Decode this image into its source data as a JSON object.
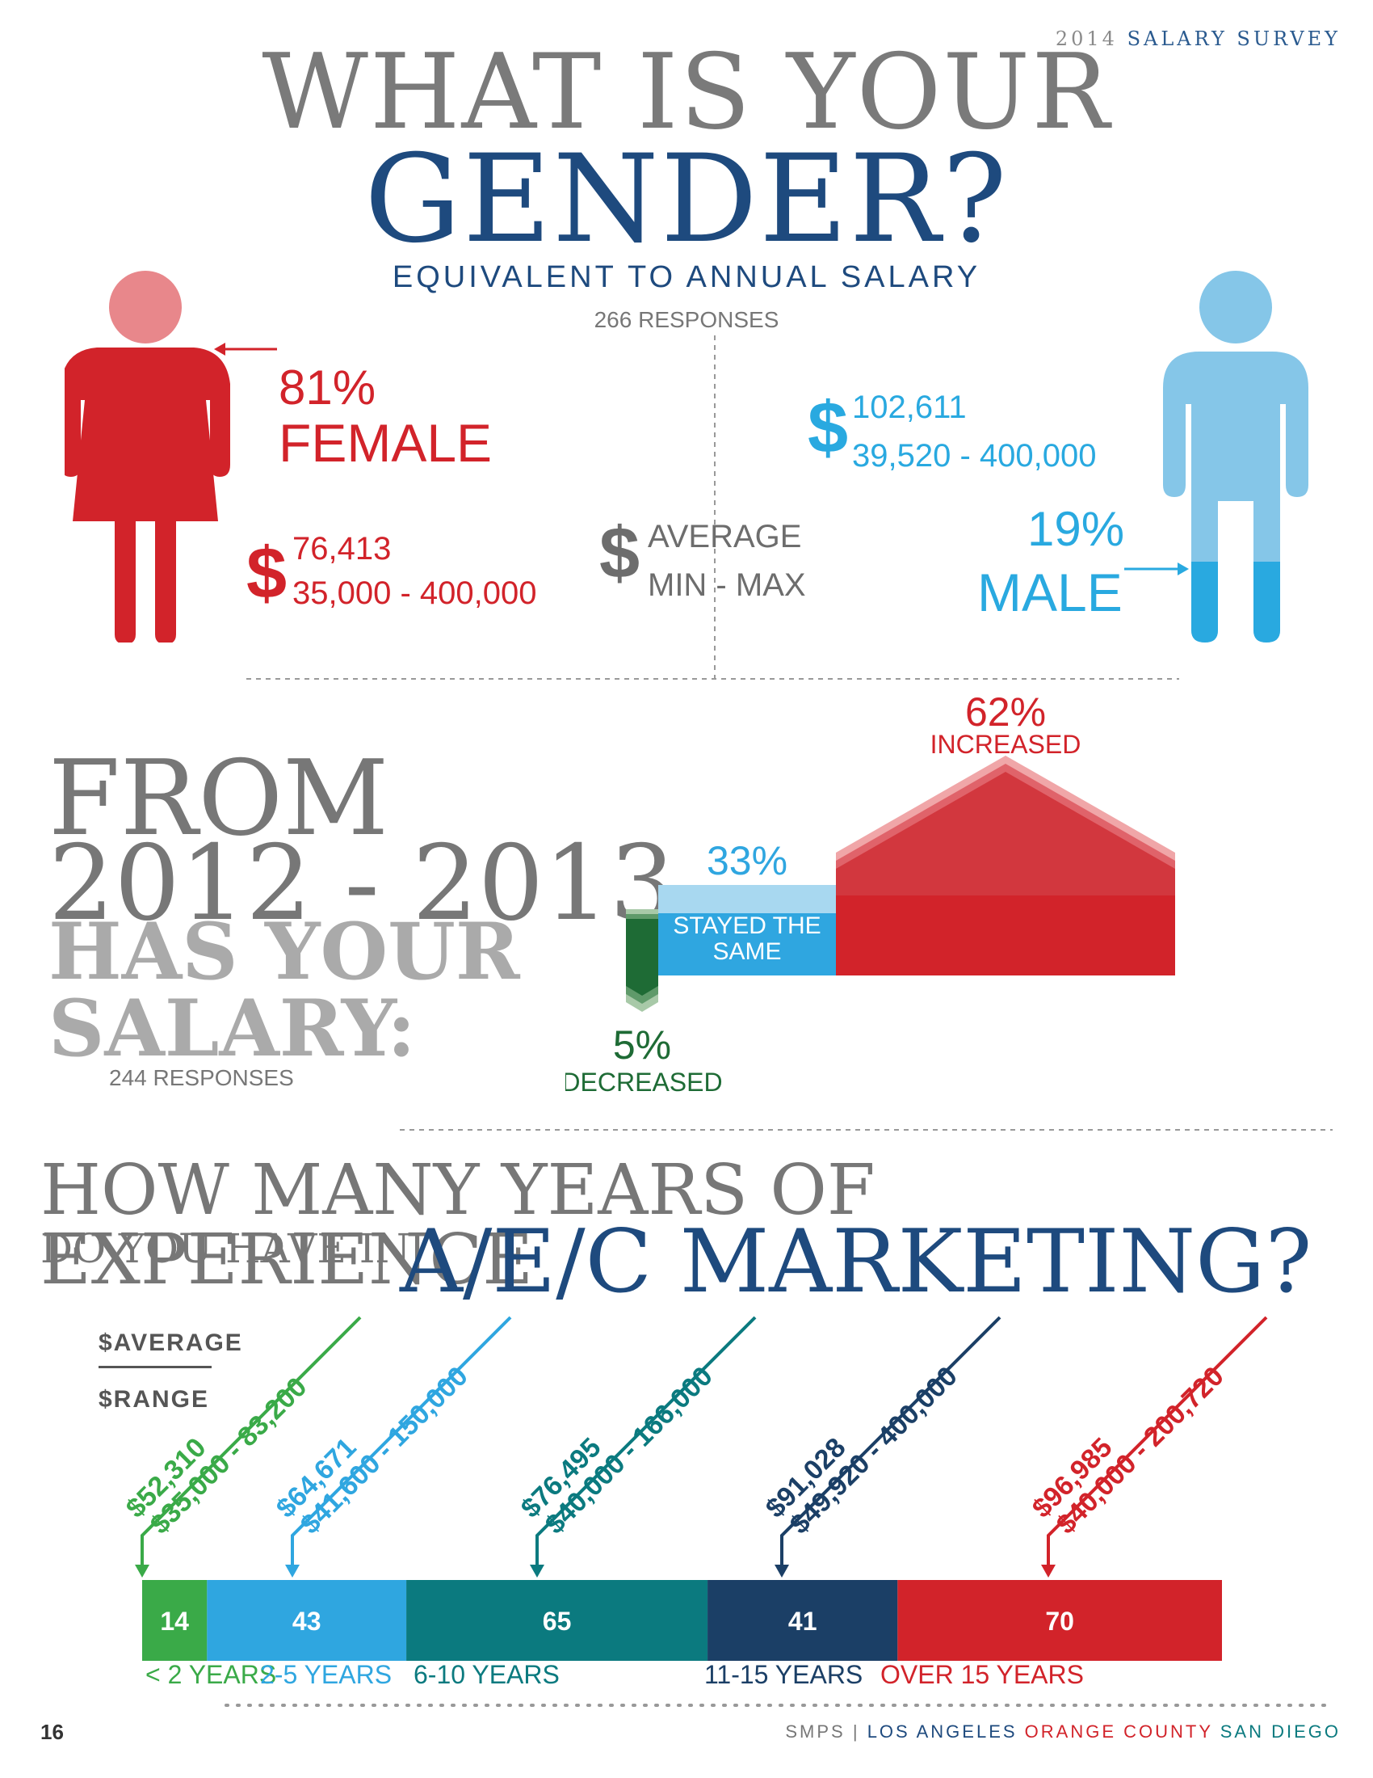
{
  "header": {
    "year": "2014",
    "survey": "SALARY SURVEY"
  },
  "gender": {
    "title_line1": "WHAT IS YOUR",
    "title_line2": "GENDER?",
    "subtitle": "EQUIVALENT TO ANNUAL SALARY",
    "responses": "266 RESPONSES",
    "female": {
      "pct": "81%",
      "label": "FEMALE",
      "average": "76,413",
      "range": "35,000 - 400,000",
      "share": 0.81
    },
    "male": {
      "pct": "19%",
      "label": "MALE",
      "average": "102,611",
      "range": "39,520 - 400,000",
      "share": 0.19
    },
    "legend": {
      "symbol": "$",
      "average": "AVERAGE",
      "minmax": "MIN - MAX"
    },
    "colors": {
      "female": "#d2232a",
      "female_head": "#e8878b",
      "male": "#85c6e8",
      "male_dark": "#29a9e0"
    }
  },
  "salary_change": {
    "title_from": "FROM",
    "title_years": "2012 - 2013,",
    "title_has": "HAS YOUR",
    "title_salary": "SALARY:",
    "responses": "244 RESPONSES",
    "chart_data": {
      "type": "bar",
      "categories": [
        "DECREASED",
        "STAYED THE SAME",
        "INCREASED"
      ],
      "values": [
        5,
        33,
        62
      ],
      "value_labels": [
        "5%",
        "33%",
        "62%"
      ],
      "colors": [
        "#1e6b35",
        "#2fa6e0",
        "#d2232a"
      ]
    }
  },
  "experience": {
    "title_line1": "HOW MANY YEARS OF EXPERIENCE",
    "title_line2a": "DO YOU HAVE IN",
    "title_line2b": "A/E/C MARKETING?",
    "legend_average": "$AVERAGE",
    "legend_range": "$RANGE",
    "chart_data": {
      "type": "bar",
      "categories": [
        "< 2 YEARS",
        "2-5 YEARS",
        "6-10 YEARS",
        "11-15 YEARS",
        "OVER 15 YEARS"
      ],
      "values": [
        14,
        43,
        65,
        41,
        70
      ],
      "averages": [
        "$52,310",
        "$64,671",
        "$76,495",
        "$91,028",
        "$96,985"
      ],
      "ranges": [
        "$35,000 - 83,200",
        "$41,600 - 150,000",
        "$40,000 - 166,000",
        "$49,920 - 400,000",
        "$40,000 - 200,720"
      ],
      "colors": [
        "#3aaa48",
        "#2fa6e0",
        "#0b7a7f",
        "#1b3f66",
        "#d2232a"
      ]
    }
  },
  "footer": {
    "page": "16",
    "org": "SMPS",
    "sep": "|",
    "city1": "LOS ANGELES",
    "city2": "ORANGE COUNTY",
    "city3": "SAN DIEGO"
  }
}
